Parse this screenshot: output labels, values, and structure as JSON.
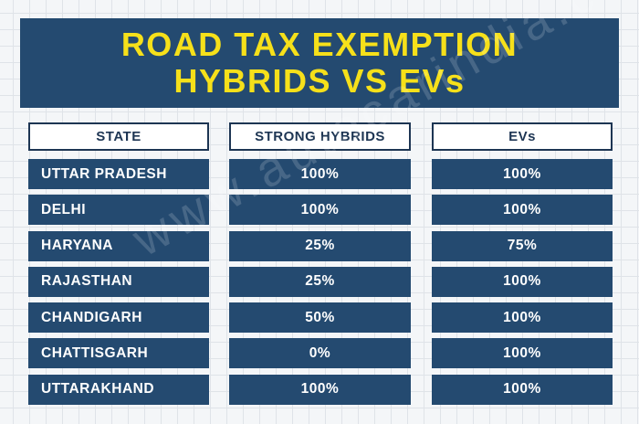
{
  "title": {
    "line1": "ROAD TAX EXEMPTION",
    "line2": "HYBRIDS VS EVs"
  },
  "watermark": "www.autocarindia.com",
  "headers": {
    "state": "STATE",
    "hybrids": "STRONG HYBRIDS",
    "evs": "EVs"
  },
  "rows": [
    {
      "state": "UTTAR PRADESH",
      "hybrids": "100%",
      "evs": "100%"
    },
    {
      "state": "DELHI",
      "hybrids": "100%",
      "evs": "100%"
    },
    {
      "state": "HARYANA",
      "hybrids": "25%",
      "evs": "75%"
    },
    {
      "state": "RAJASTHAN",
      "hybrids": "25%",
      "evs": "100%"
    },
    {
      "state": "CHANDIGARH",
      "hybrids": "50%",
      "evs": "100%"
    },
    {
      "state": "CHATTISGARH",
      "hybrids": "0%",
      "evs": "100%"
    },
    {
      "state": "UTTARAKHAND",
      "hybrids": "100%",
      "evs": "100%"
    }
  ],
  "colors": {
    "banner": "#244a70",
    "title_text": "#f6e01a",
    "cell": "#244a70",
    "header_border": "#1d3553"
  }
}
